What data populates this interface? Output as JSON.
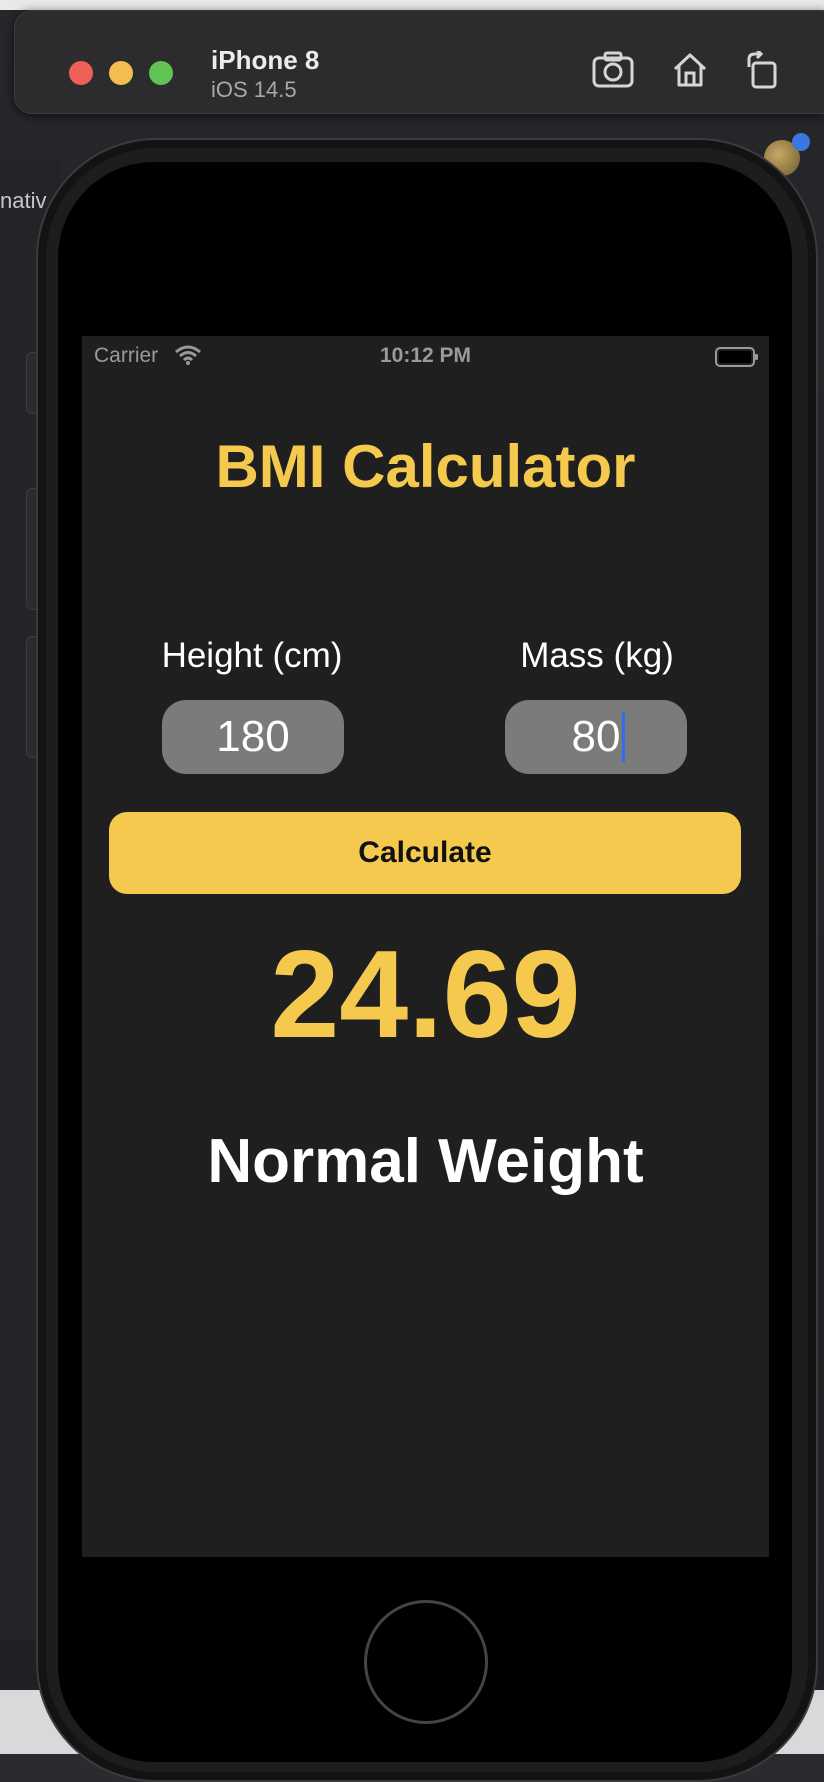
{
  "simulator": {
    "device_name": "iPhone 8",
    "os_version": "iOS 14.5",
    "toolbar": [
      {
        "icon": "screenshot-icon"
      },
      {
        "icon": "home-icon"
      },
      {
        "icon": "rotate-icon"
      }
    ]
  },
  "background": {
    "left_panel_text": "nativ"
  },
  "status_bar": {
    "carrier": "Carrier",
    "time": "10:12 PM"
  },
  "app": {
    "title": "BMI Calculator",
    "height_label": "Height (cm)",
    "height_value": "180",
    "mass_label": "Mass (kg)",
    "mass_value": "80",
    "calculate_label": "Calculate",
    "bmi_result": "24.69",
    "bmi_category": "Normal Weight"
  },
  "colors": {
    "accent": "#f5c94e",
    "screen_background": "#1f1f1f",
    "input_background": "#7b7b7b",
    "caret": "#2f6df0"
  }
}
